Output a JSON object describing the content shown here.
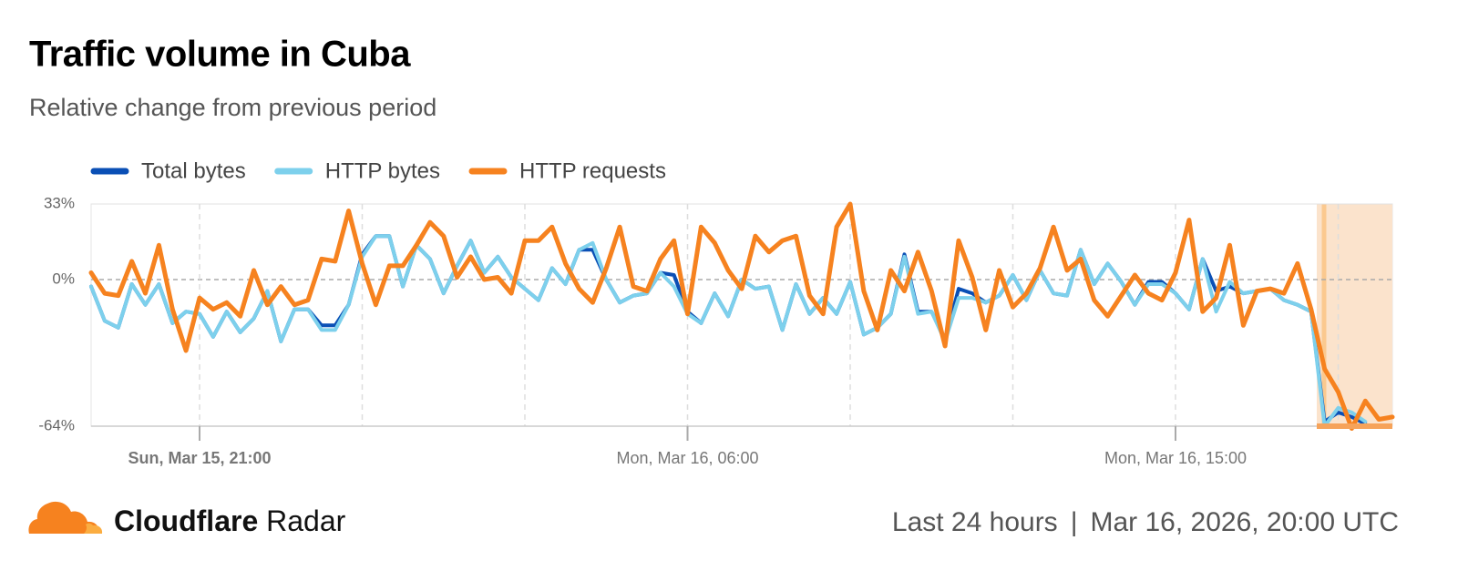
{
  "title": "Traffic volume in Cuba",
  "subtitle": "Relative change from previous period",
  "chart_data": {
    "type": "line",
    "categories": [
      null,
      null,
      null,
      null,
      null,
      null,
      null,
      null,
      "Sun, Mar 15, 21:00",
      null,
      null,
      null,
      null,
      null,
      null,
      null,
      null,
      null,
      null,
      null,
      null,
      null,
      null,
      null,
      null,
      null,
      null,
      null,
      null,
      null,
      null,
      null,
      null,
      null,
      null,
      null,
      null,
      null,
      null,
      null,
      null,
      null,
      null,
      null,
      "Mon, Mar 16, 06:00",
      null,
      null,
      null,
      null,
      null,
      null,
      null,
      null,
      null,
      null,
      null,
      null,
      null,
      null,
      null,
      null,
      null,
      null,
      null,
      null,
      null,
      null,
      null,
      null,
      null,
      null,
      null,
      null,
      null,
      null,
      null,
      null,
      null,
      null,
      null,
      "Mon, Mar 16, 15:00",
      null,
      null,
      null,
      null,
      null,
      null,
      null,
      null,
      null,
      null,
      null,
      null,
      null,
      null,
      null,
      null
    ],
    "series": [
      {
        "name": "Total bytes",
        "color": "#0a4fb5",
        "values": [
          -3,
          -18,
          -21,
          -2,
          -11,
          -2,
          -19,
          -14,
          -15,
          -25,
          -14,
          -23,
          -17,
          -5,
          -27,
          -13,
          -13,
          -20,
          -20,
          -11,
          11,
          19,
          19,
          -3,
          15,
          9,
          -6,
          6,
          17,
          3,
          10,
          1,
          -4,
          -9,
          5,
          -2,
          13,
          13,
          0,
          -10,
          -7,
          -6,
          3,
          2,
          -14,
          -19,
          -6,
          -16,
          0,
          -4,
          -3,
          -22,
          -2,
          -15,
          -8,
          -15,
          -1,
          -24,
          -21,
          -15,
          11,
          -14,
          -14,
          -26,
          -4,
          -6,
          -10,
          -7,
          2,
          -9,
          4,
          -6,
          -7,
          13,
          -2,
          7,
          -1,
          -11,
          -1,
          -1,
          -6,
          -13,
          9,
          -5,
          -3,
          -6,
          -5,
          -4,
          -9,
          -11,
          -14,
          -62,
          -58,
          -60,
          -63,
          null,
          null
        ]
      },
      {
        "name": "HTTP bytes",
        "color": "#7dd0ec",
        "values": [
          -3,
          -18,
          -21,
          -2,
          -11,
          -2,
          -19,
          -14,
          -15,
          -25,
          -14,
          -23,
          -17,
          -5,
          -27,
          -13,
          -13,
          -22,
          -22,
          -11,
          10,
          19,
          19,
          -3,
          15,
          9,
          -6,
          6,
          17,
          3,
          10,
          1,
          -4,
          -9,
          5,
          -2,
          13,
          16,
          0,
          -10,
          -7,
          -6,
          3,
          -3,
          -15,
          -19,
          -6,
          -16,
          0,
          -4,
          -3,
          -22,
          -2,
          -15,
          -8,
          -15,
          -1,
          -24,
          -21,
          -15,
          10,
          -15,
          -14,
          -27,
          -8,
          -8,
          -10,
          -7,
          2,
          -9,
          4,
          -6,
          -7,
          13,
          -2,
          7,
          -1,
          -11,
          -2,
          -2,
          -6,
          -13,
          9,
          -14,
          -1,
          -6,
          -5,
          -4,
          -9,
          -11,
          -14,
          -64,
          -56,
          -58,
          -62,
          null,
          null
        ]
      },
      {
        "name": "HTTP requests",
        "color": "#f6821f",
        "values": [
          3,
          -6,
          -7,
          8,
          -6,
          15,
          -13,
          -31,
          -8,
          -13,
          -10,
          -16,
          4,
          -11,
          -3,
          -11,
          -9,
          9,
          8,
          30,
          7,
          -11,
          6,
          6,
          15,
          25,
          19,
          1,
          10,
          0,
          1,
          -6,
          17,
          17,
          23,
          7,
          -4,
          -10,
          5,
          23,
          -3,
          -5,
          9,
          17,
          -15,
          23,
          16,
          4,
          -4,
          19,
          12,
          17,
          19,
          -7,
          -15,
          23,
          33,
          -5,
          -22,
          4,
          -5,
          12,
          -5,
          -29,
          17,
          1,
          -22,
          4,
          -12,
          -6,
          5,
          23,
          4,
          9,
          -9,
          -16,
          -7,
          2,
          -6,
          -9,
          3,
          26,
          -14,
          -8,
          15,
          -20,
          -5,
          -4,
          -6,
          7,
          -13,
          -39,
          -49,
          -65,
          -53,
          -61,
          -60
        ]
      }
    ],
    "ylim": [
      -64,
      33
    ],
    "yticks": [
      {
        "value": 33,
        "label": "33%"
      },
      {
        "value": 0,
        "label": "0%"
      },
      {
        "value": -64,
        "label": "-64%"
      }
    ],
    "legend": "top-left"
  },
  "footer": {
    "brand": "Cloudflare",
    "product": "Radar",
    "period": "Last 24 hours",
    "separator": "|",
    "timestamp": "Mar 16, 2026, 20:00 UTC"
  }
}
